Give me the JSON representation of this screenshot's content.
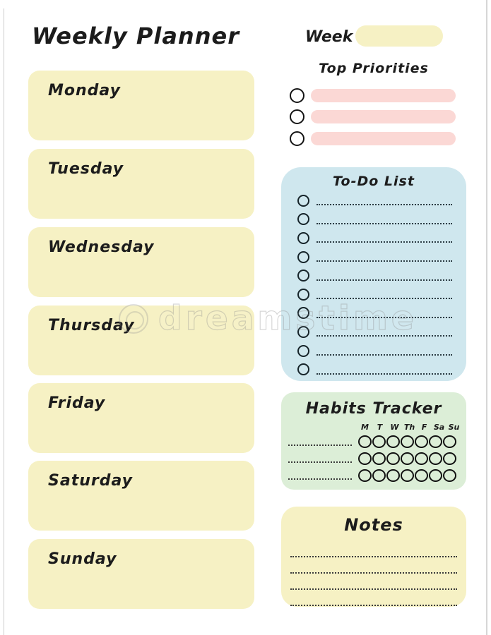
{
  "title": "Weekly Planner",
  "week": {
    "label": "Week"
  },
  "days": [
    "Monday",
    "Tuesday",
    "Wednesday",
    "Thursday",
    "Friday",
    "Saturday",
    "Sunday"
  ],
  "priorities": {
    "heading": "Top Priorities",
    "row_count": 3
  },
  "todo": {
    "heading": "To-Do List",
    "row_count": 10
  },
  "habits": {
    "heading": "Habits Tracker",
    "day_columns": [
      "M",
      "T",
      "W",
      "Th",
      "F",
      "Sa",
      "Su"
    ],
    "row_count": 3
  },
  "notes": {
    "heading": "Notes",
    "line_count": 4
  },
  "watermark": {
    "text": "dreamstime"
  },
  "colors": {
    "yellow": "#f6f1c4",
    "pink": "#fbd8d5",
    "blue": "#cfe7ee",
    "green": "#dceed7",
    "ink": "#1c1c1c"
  }
}
